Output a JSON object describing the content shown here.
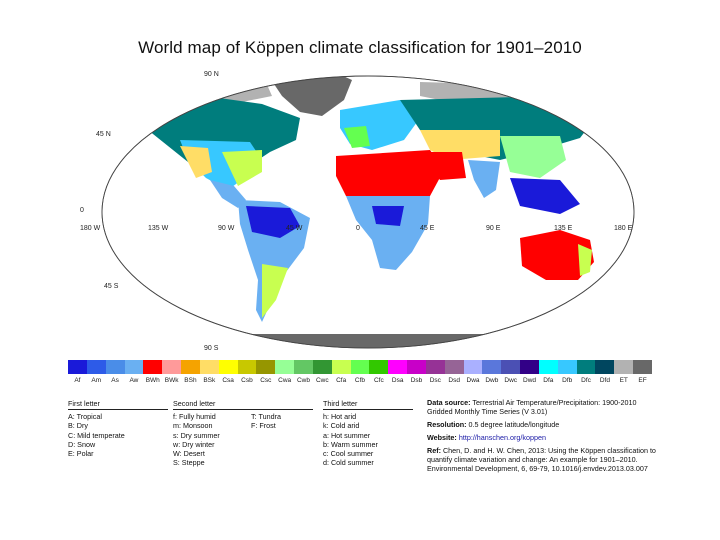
{
  "title": "World map of Köppen climate classification for 1901–2010",
  "latitude_labels": [
    "90 N",
    "45 N",
    "0",
    "45 S",
    "90 S"
  ],
  "longitude_labels": [
    "180 W",
    "135 W",
    "90 W",
    "45 W",
    "0",
    "45 E",
    "90 E",
    "135 E",
    "180 E"
  ],
  "legend": [
    {
      "code": "Af",
      "color": "#1a1ad9"
    },
    {
      "code": "Am",
      "color": "#2d5be8"
    },
    {
      "code": "As",
      "color": "#4a8de8"
    },
    {
      "code": "Aw",
      "color": "#6ab0f2"
    },
    {
      "code": "BWh",
      "color": "#ff0000"
    },
    {
      "code": "BWk",
      "color": "#ff9a9a"
    },
    {
      "code": "BSh",
      "color": "#f5a300"
    },
    {
      "code": "BSk",
      "color": "#ffdd66"
    },
    {
      "code": "Csa",
      "color": "#ffff00"
    },
    {
      "code": "Csb",
      "color": "#c8c800"
    },
    {
      "code": "Csc",
      "color": "#969600"
    },
    {
      "code": "Cwa",
      "color": "#96ff96"
    },
    {
      "code": "Cwb",
      "color": "#63c764"
    },
    {
      "code": "Cwc",
      "color": "#329633"
    },
    {
      "code": "Cfa",
      "color": "#c8ff50"
    },
    {
      "code": "Cfb",
      "color": "#64ff50"
    },
    {
      "code": "Cfc",
      "color": "#32c800"
    },
    {
      "code": "Dsa",
      "color": "#ff00ff"
    },
    {
      "code": "Dsb",
      "color": "#c800c8"
    },
    {
      "code": "Dsc",
      "color": "#963296"
    },
    {
      "code": "Dsd",
      "color": "#966496"
    },
    {
      "code": "Dwa",
      "color": "#aab0ff"
    },
    {
      "code": "Dwb",
      "color": "#5a77db"
    },
    {
      "code": "Dwc",
      "color": "#4b50b4"
    },
    {
      "code": "Dwd",
      "color": "#320087"
    },
    {
      "code": "Dfa",
      "color": "#00ffff"
    },
    {
      "code": "Dfb",
      "color": "#37c8ff"
    },
    {
      "code": "Dfc",
      "color": "#007d7d"
    },
    {
      "code": "Dfd",
      "color": "#00465f"
    },
    {
      "code": "ET",
      "color": "#b2b2b2"
    },
    {
      "code": "EF",
      "color": "#686868"
    }
  ],
  "first_letter": {
    "header": "First letter",
    "rows": [
      "A: Tropical",
      "B: Dry",
      "C: Mild temperate",
      "D: Snow",
      "E: Polar"
    ]
  },
  "second_letter": {
    "header": "Second letter",
    "col1": [
      "f: Fully humid",
      "m: Monsoon",
      "s: Dry summer",
      "w: Dry winter",
      "W: Desert",
      "S: Steppe"
    ],
    "col2": [
      "T: Tundra",
      "F: Frost"
    ]
  },
  "third_letter": {
    "header": "Third letter",
    "rows": [
      "h: Hot arid",
      "k: Cold arid",
      "a: Hot summer",
      "b: Warm summer",
      "c: Cool summer",
      "d: Cold summer"
    ]
  },
  "info": {
    "source_label": "Data source:",
    "source_text": "Terrestrial Air Temperature/Precipitation: 1900-2010 Gridded Monthly Time Series (V 3.01)",
    "resolution_label": "Resolution:",
    "resolution_text": "0.5 degree latitude/longitude",
    "website_label": "Website:",
    "website_text": "http://hanschen.org/koppen",
    "ref_label": "Ref:",
    "ref_text": "Chen, D. and H. W. Chen, 2013: Using the Köppen classification to quantify climate variation and change: An example for 1901–2010. Environmental Development, 6, 69-79, 10.1016/j.envdev.2013.03.007"
  }
}
